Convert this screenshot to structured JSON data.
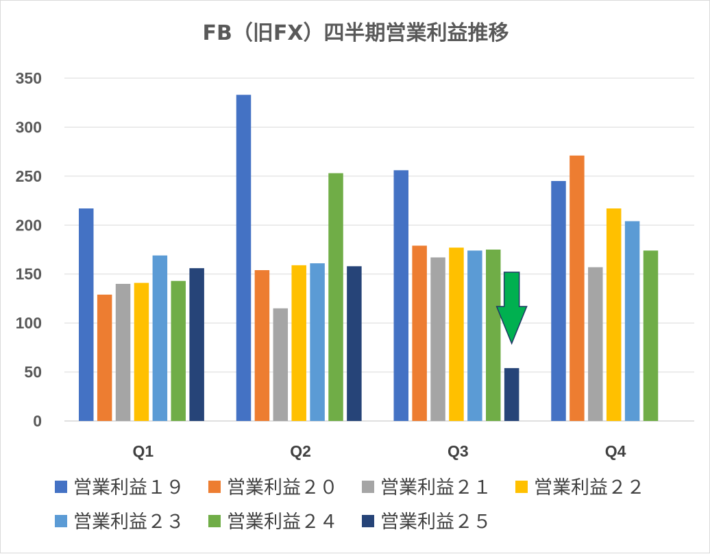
{
  "chart_data": {
    "type": "bar",
    "title": "FB（旧FX）四半期営業利益推移",
    "categories": [
      "Q1",
      "Q2",
      "Q3",
      "Q4"
    ],
    "ylim": [
      0,
      350
    ],
    "yticks": [
      "0",
      "50",
      "100",
      "150",
      "200",
      "250",
      "300",
      "350"
    ],
    "grid": true,
    "legend_position": "bottom",
    "series": [
      {
        "name": "営業利益１９",
        "color": "#4472c4",
        "values": [
          217,
          333,
          256,
          245
        ]
      },
      {
        "name": "営業利益２０",
        "color": "#ed7d31",
        "values": [
          129,
          154,
          179,
          271
        ]
      },
      {
        "name": "営業利益２１",
        "color": "#a5a5a5",
        "values": [
          140,
          115,
          167,
          157
        ]
      },
      {
        "name": "営業利益２２",
        "color": "#ffc000",
        "values": [
          141,
          159,
          177,
          217
        ]
      },
      {
        "name": "営業利益２３",
        "color": "#5b9bd5",
        "values": [
          169,
          161,
          174,
          204
        ]
      },
      {
        "name": "営業利益２４",
        "color": "#70ad47",
        "values": [
          143,
          253,
          175,
          174
        ]
      },
      {
        "name": "営業利益２５",
        "color": "#264478",
        "values": [
          156,
          158,
          54,
          null
        ]
      }
    ],
    "annotations": [
      {
        "type": "arrow-down",
        "color": "#00b050",
        "category": "Q3",
        "series": "営業利益２５"
      }
    ]
  }
}
